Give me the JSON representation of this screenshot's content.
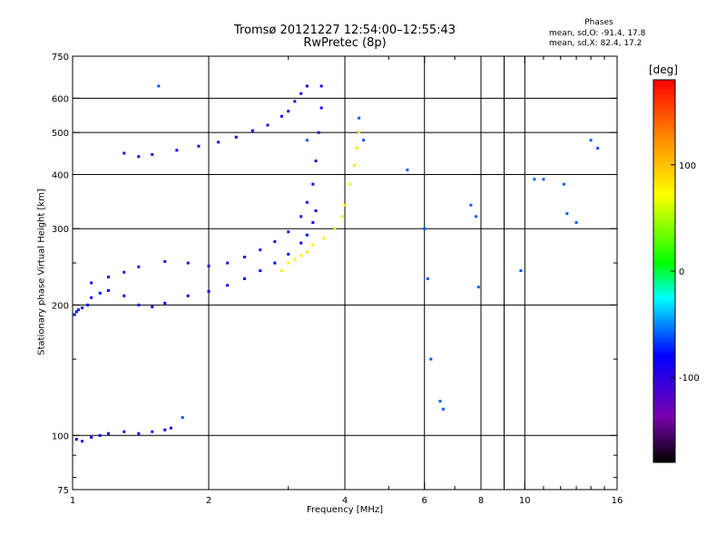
{
  "title": {
    "line1": "Tromsø 20121227 12:54:00–12:55:43",
    "line2": "RwPretec (8p)"
  },
  "stats": {
    "title": "Phases",
    "o_line": "mean, sd,O: -91.4, 17.8",
    "x_line": "mean, sd,X:  82.4, 17.2"
  },
  "colorbar": {
    "unit": "[deg]",
    "range": [
      -180,
      180
    ],
    "ticks": [
      100,
      0,
      -100
    ],
    "tick_labels": [
      "100",
      "0",
      "-100"
    ]
  },
  "chart_data": {
    "type": "scatter",
    "xlabel": "Frequency [MHz]",
    "ylabel": "Stationary phase Virtual Height [km]",
    "x_scale": "log",
    "y_scale": "log",
    "xlim": [
      1,
      16
    ],
    "ylim": [
      75,
      750
    ],
    "x_ticks": [
      1,
      2,
      4,
      6,
      8,
      10,
      16
    ],
    "x_tick_labels": [
      "1",
      "2",
      "4",
      "6",
      "8",
      "10",
      "16"
    ],
    "x_minor_ticks": [
      3,
      5,
      7,
      9,
      11,
      12,
      13,
      14,
      15
    ],
    "x_gridlines": [
      2,
      4,
      6,
      8,
      10
    ],
    "x_minor_gridlines": [
      9
    ],
    "y_ticks": [
      75,
      100,
      200,
      300,
      400,
      500,
      600,
      750
    ],
    "y_tick_labels": [
      "75",
      "100",
      "200",
      "300",
      "400",
      "500",
      "600",
      "750"
    ],
    "y_minor_ticks": [
      80,
      90,
      150,
      250
    ],
    "y_gridlines": [
      100,
      200,
      300,
      400,
      500,
      600
    ],
    "grid": true,
    "series": [
      {
        "name": "",
        "points": [
          [
            1.01,
            190
          ],
          [
            1.02,
            193
          ],
          [
            1.03,
            195
          ],
          [
            1.05,
            197
          ],
          [
            1.08,
            200
          ],
          [
            1.1,
            208
          ],
          [
            1.15,
            213
          ],
          [
            1.2,
            216
          ],
          [
            1.3,
            210
          ],
          [
            1.4,
            200
          ],
          [
            1.5,
            198
          ],
          [
            1.6,
            202
          ],
          [
            1.8,
            210
          ],
          [
            2.0,
            215
          ],
          [
            2.2,
            222
          ],
          [
            2.4,
            230
          ],
          [
            2.6,
            240
          ],
          [
            2.8,
            250
          ],
          [
            3.0,
            262
          ],
          [
            3.2,
            278
          ],
          [
            3.3,
            290
          ],
          [
            3.4,
            310
          ],
          [
            3.45,
            330
          ]
        ],
        "phase": -80
      },
      {
        "name": "",
        "points": [
          [
            1.1,
            225
          ],
          [
            1.2,
            232
          ],
          [
            1.3,
            238
          ],
          [
            1.4,
            245
          ],
          [
            1.6,
            252
          ],
          [
            1.8,
            250
          ],
          [
            2.0,
            246
          ],
          [
            2.2,
            250
          ],
          [
            2.4,
            258
          ],
          [
            2.6,
            268
          ],
          [
            2.8,
            280
          ],
          [
            3.0,
            295
          ],
          [
            3.2,
            320
          ],
          [
            3.3,
            345
          ],
          [
            3.4,
            380
          ],
          [
            3.45,
            430
          ],
          [
            3.5,
            500
          ],
          [
            3.55,
            570
          ],
          [
            3.55,
            640
          ]
        ],
        "phase": -95
      },
      {
        "name": "",
        "points": [
          [
            1.3,
            448
          ],
          [
            1.4,
            440
          ],
          [
            1.5,
            445
          ],
          [
            1.7,
            455
          ],
          [
            1.9,
            465
          ],
          [
            2.1,
            475
          ],
          [
            2.3,
            488
          ],
          [
            2.5,
            505
          ],
          [
            2.7,
            520
          ],
          [
            2.9,
            545
          ],
          [
            3.0,
            560
          ],
          [
            3.1,
            590
          ],
          [
            3.2,
            615
          ],
          [
            3.3,
            640
          ]
        ],
        "phase": -90
      },
      {
        "name": "",
        "points": [
          [
            1.02,
            98
          ],
          [
            1.05,
            97
          ],
          [
            1.1,
            99
          ],
          [
            1.15,
            100
          ],
          [
            1.2,
            101
          ],
          [
            1.3,
            102
          ],
          [
            1.4,
            101
          ],
          [
            1.5,
            102
          ],
          [
            1.6,
            103
          ],
          [
            1.65,
            104
          ]
        ],
        "phase": -85
      },
      {
        "name": "",
        "points": [
          [
            2.9,
            240
          ],
          [
            3.0,
            250
          ],
          [
            3.1,
            255
          ],
          [
            3.2,
            260
          ],
          [
            3.3,
            265
          ],
          [
            3.4,
            275
          ],
          [
            3.6,
            285
          ],
          [
            3.8,
            300
          ],
          [
            3.95,
            320
          ],
          [
            4.0,
            340
          ],
          [
            4.1,
            380
          ],
          [
            4.2,
            420
          ],
          [
            4.25,
            460
          ],
          [
            4.3,
            500
          ]
        ],
        "phase": 80
      },
      {
        "name": "",
        "points": [
          [
            1.55,
            640
          ],
          [
            1.75,
            110
          ],
          [
            3.3,
            480
          ],
          [
            4.3,
            540
          ],
          [
            4.4,
            480
          ],
          [
            5.5,
            410
          ],
          [
            6.0,
            300
          ],
          [
            6.1,
            230
          ],
          [
            6.2,
            150
          ],
          [
            6.5,
            120
          ],
          [
            6.6,
            115
          ],
          [
            7.6,
            340
          ],
          [
            7.8,
            320
          ],
          [
            7.9,
            220
          ],
          [
            9.8,
            240
          ],
          [
            10.5,
            390
          ],
          [
            11.0,
            390
          ],
          [
            12.2,
            380
          ],
          [
            12.4,
            325
          ],
          [
            13.0,
            310
          ],
          [
            14.0,
            480
          ],
          [
            14.5,
            460
          ]
        ],
        "phase": -60
      }
    ]
  }
}
